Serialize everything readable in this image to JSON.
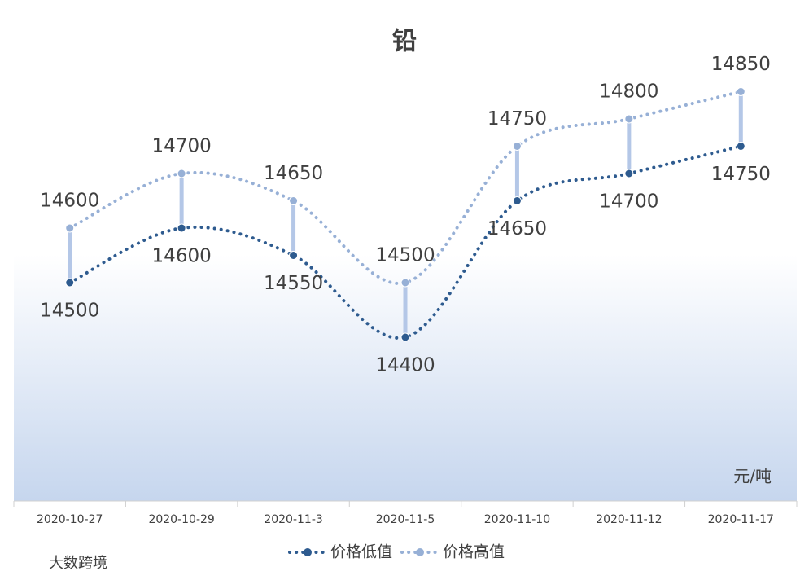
{
  "chart_data": {
    "type": "line",
    "title": "铅",
    "unit_label": "元/吨",
    "categories": [
      "2020-10-27",
      "2020-10-29",
      "2020-11-3",
      "2020-11-5",
      "2020-11-10",
      "2020-11-12",
      "2020-11-17"
    ],
    "series": [
      {
        "name": "价格低值",
        "color": "#2e5b8f",
        "values": [
          14500,
          14600,
          14550,
          14400,
          14650,
          14700,
          14750
        ]
      },
      {
        "name": "价格高值",
        "color": "#97b0d6",
        "values": [
          14600,
          14700,
          14650,
          14500,
          14750,
          14800,
          14850
        ]
      }
    ],
    "ylim": [
      14100,
      15000
    ],
    "high_low_lines": true,
    "high_low_color": "#b4c7e7",
    "legend": "bottom",
    "watermark": "大数跨境"
  }
}
